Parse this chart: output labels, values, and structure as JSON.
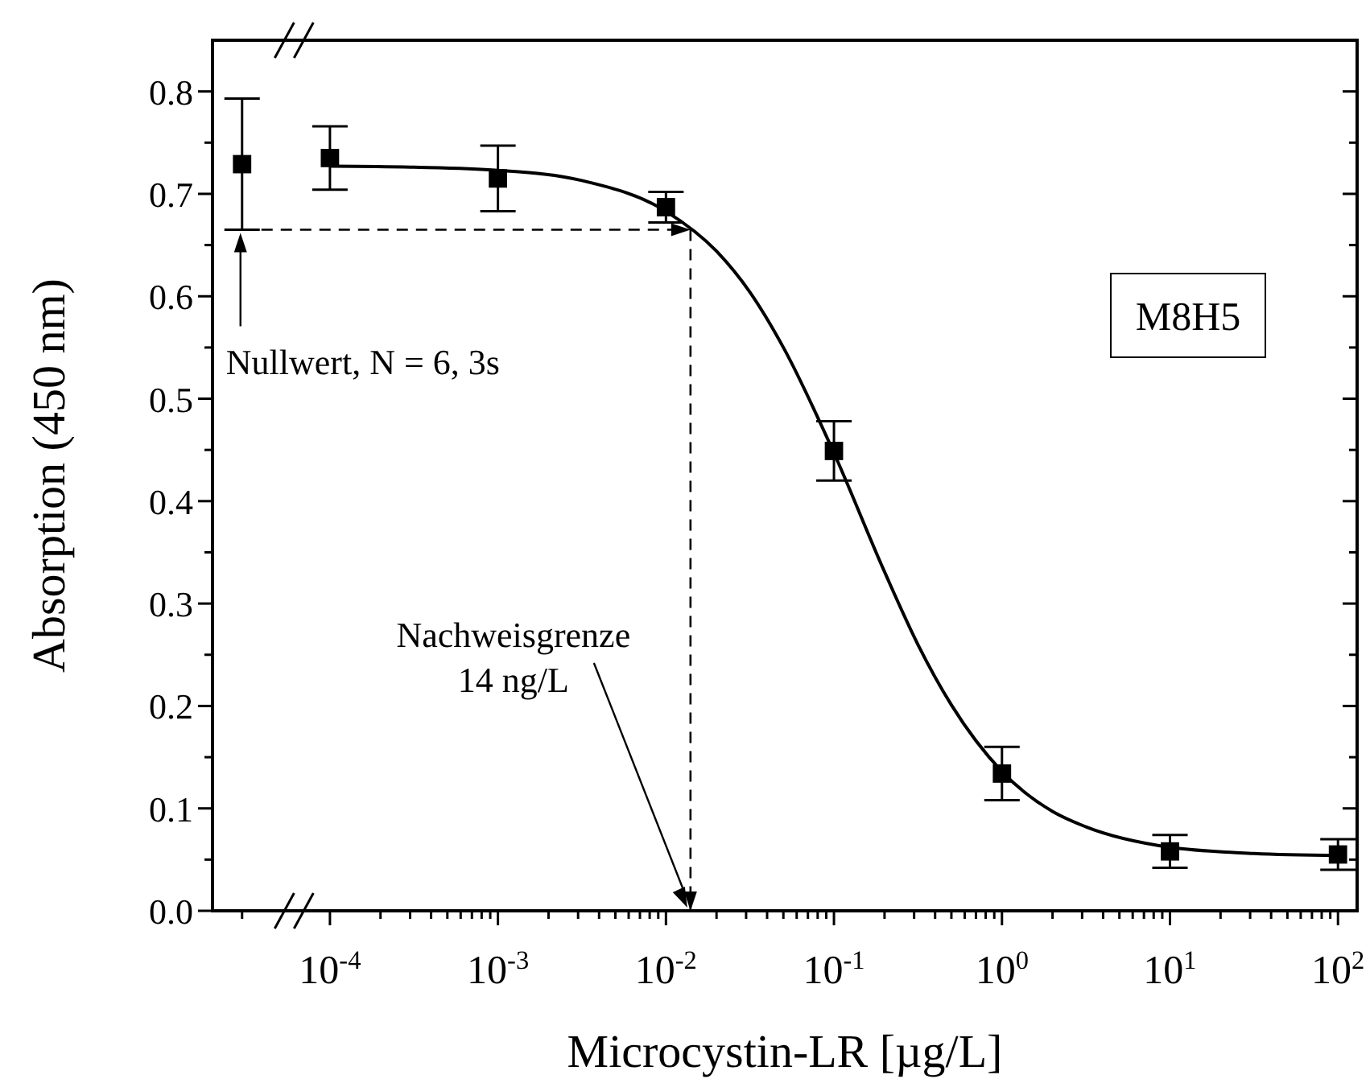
{
  "chart_data": {
    "type": "scatter",
    "xlabel": "Microcystin-LR [µg/L]",
    "ylabel": "Absorption (450 nm)",
    "log": "x",
    "grid": false,
    "xlim": [
      2e-05,
      130
    ],
    "ylim": [
      0,
      0.85
    ],
    "xticks": [
      {
        "value": 3e-05,
        "label": null
      },
      {
        "value": 0.0001,
        "label": "10$^{-4}$"
      },
      {
        "value": 0.001,
        "label": "10$^{-3}$"
      },
      {
        "value": 0.01,
        "label": "10$^{-2}$"
      },
      {
        "value": 0.1,
        "label": "10$^{-1}$"
      },
      {
        "value": 1,
        "label": "10$^{0}$"
      },
      {
        "value": 10,
        "label": "10$^{1}$"
      },
      {
        "value": 100,
        "label": "10$^{2}$"
      },
      {
        "value": 0.0002,
        "label": null
      },
      {
        "value": 0.0003,
        "label": null
      },
      {
        "value": 0.0004,
        "label": null
      },
      {
        "value": 0.0005,
        "label": null
      },
      {
        "value": 0.0006,
        "label": null
      },
      {
        "value": 0.0007,
        "label": null
      },
      {
        "value": 0.0008,
        "label": null
      },
      {
        "value": 0.0009,
        "label": null
      },
      {
        "value": 0.002,
        "label": null
      },
      {
        "value": 0.003,
        "label": null
      },
      {
        "value": 0.004,
        "label": null
      },
      {
        "value": 0.005,
        "label": null
      },
      {
        "value": 0.006,
        "label": null
      },
      {
        "value": 0.007,
        "label": null
      },
      {
        "value": 0.008,
        "label": null
      },
      {
        "value": 0.009,
        "label": null
      },
      {
        "value": 0.02,
        "label": null
      },
      {
        "value": 0.03,
        "label": null
      },
      {
        "value": 0.04,
        "label": null
      },
      {
        "value": 0.05,
        "label": null
      },
      {
        "value": 0.06,
        "label": null
      },
      {
        "value": 0.07,
        "label": null
      },
      {
        "value": 0.08,
        "label": null
      },
      {
        "value": 0.09,
        "label": null
      },
      {
        "value": 0.2,
        "label": null
      },
      {
        "value": 0.3,
        "label": null
      },
      {
        "value": 0.4,
        "label": null
      },
      {
        "value": 0.5,
        "label": null
      },
      {
        "value": 0.6,
        "label": null
      },
      {
        "value": 0.7,
        "label": null
      },
      {
        "value": 0.8,
        "label": null
      },
      {
        "value": 0.9,
        "label": null
      },
      {
        "value": 2,
        "label": null
      },
      {
        "value": 3,
        "label": null
      },
      {
        "value": 4,
        "label": null
      },
      {
        "value": 5,
        "label": null
      },
      {
        "value": 6,
        "label": null
      },
      {
        "value": 7,
        "label": null
      },
      {
        "value": 8,
        "label": null
      },
      {
        "value": 9,
        "label": null
      },
      {
        "value": 20,
        "label": null
      },
      {
        "value": 30,
        "label": null
      },
      {
        "value": 40,
        "label": null
      },
      {
        "value": 50,
        "label": null
      },
      {
        "value": 60,
        "label": null
      },
      {
        "value": 70,
        "label": null
      },
      {
        "value": 80,
        "label": null
      },
      {
        "value": 90,
        "label": null
      }
    ],
    "yticks": [
      {
        "value": 0,
        "label": "0.0"
      },
      {
        "value": 0.1,
        "label": "0.1"
      },
      {
        "value": 0.2,
        "label": "0.2"
      },
      {
        "value": 0.3,
        "label": "0.3"
      },
      {
        "value": 0.4,
        "label": "0.4"
      },
      {
        "value": 0.5,
        "label": "0.5"
      },
      {
        "value": 0.6,
        "label": "0.6"
      },
      {
        "value": 0.7,
        "label": "0.7"
      },
      {
        "value": 0.8,
        "label": "0.8"
      },
      {
        "value": 0.05,
        "label": null
      },
      {
        "value": 0.15,
        "label": null
      },
      {
        "value": 0.25,
        "label": null
      },
      {
        "value": 0.35,
        "label": null
      },
      {
        "value": 0.45,
        "label": null
      },
      {
        "value": 0.55,
        "label": null
      },
      {
        "value": 0.65,
        "label": null
      },
      {
        "value": 0.75,
        "label": null
      }
    ],
    "series": [
      {
        "marker": "square",
        "color": "#000000",
        "x": [
          3e-05
        ],
        "values": [
          0.729
        ],
        "errors": [
          0.064
        ]
      },
      {
        "marker": "square",
        "color": "#000000",
        "x": [
          0.0001,
          0.001,
          0.01,
          0.1,
          1,
          10,
          100
        ],
        "values": [
          0.735,
          0.715,
          0.687,
          0.449,
          0.134,
          0.058,
          0.055
        ],
        "errors": [
          0.031,
          0.032,
          0.015,
          0.029,
          0.026,
          0.016,
          0.015
        ]
      },
      {
        "type": "line",
        "color": "#000000",
        "line_style": "solid",
        "x": [
          0.0001,
          0.000316,
          0.001,
          0.00316,
          0.01,
          0.02,
          0.0316,
          0.05,
          0.1,
          0.2,
          0.316,
          0.5,
          1,
          2,
          3.16,
          10,
          31.6,
          100
        ],
        "values": [
          0.727,
          0.726,
          0.723,
          0.713,
          0.683,
          0.644,
          0.604,
          0.55,
          0.447,
          0.331,
          0.26,
          0.201,
          0.136,
          0.097,
          0.082,
          0.062,
          0.056,
          0.054
        ]
      }
    ],
    "ref_lines": [
      {
        "axis": "y",
        "value": 0.665,
        "line_style": "dashed",
        "color": "#000000"
      },
      {
        "axis": "x",
        "value": 0.014,
        "line_style": "dashed",
        "color": "#000000"
      }
    ],
    "annotations": [
      "Nullwert, N = 6, 3s",
      {
        "text": "Nachweisgrenze\n14 ng/L",
        "x": 0.014
      },
      "M8H5"
    ]
  }
}
